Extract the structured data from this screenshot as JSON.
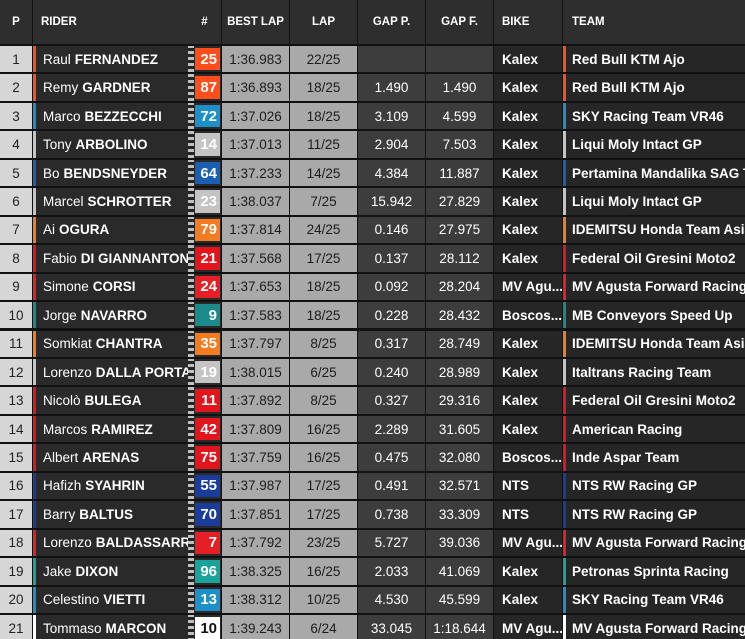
{
  "header": [
    "P",
    "RIDER",
    "#",
    "BEST LAP",
    "LAP",
    "GAP P.",
    "GAP F.",
    "BIKE",
    "TEAM"
  ],
  "rows": [
    {
      "p": 1,
      "first": "Raul",
      "last": "FERNANDEZ",
      "number": 25,
      "color": "#ff4e1b",
      "best_lap": "1:36.983",
      "lap": "22/25",
      "bike": "Kalex",
      "team": "Red Bull KTM Ajo"
    },
    {
      "p": 2,
      "first": "Remy",
      "last": "GARDNER",
      "number": 87,
      "color": "#ff4e1b",
      "best_lap": "1:36.893",
      "lap": "18/25",
      "gap_p": "1.490",
      "gap_f": "1.490",
      "bike": "Kalex",
      "team": "Red Bull KTM Ajo"
    },
    {
      "p": 3,
      "first": "Marco",
      "last": "BEZZECCHI",
      "number": 72,
      "color": "#1d8fc9",
      "best_lap": "1:37.026",
      "lap": "18/25",
      "gap_p": "3.109",
      "gap_f": "4.599",
      "bike": "Kalex",
      "team": "SKY Racing Team VR46"
    },
    {
      "p": 4,
      "first": "Tony",
      "last": "ARBOLINO",
      "number": 14,
      "color": "#c4c4c4",
      "best_lap": "1:37.013",
      "lap": "11/25",
      "gap_p": "2.904",
      "gap_f": "7.503",
      "bike": "Kalex",
      "team": "Liqui Moly Intact GP"
    },
    {
      "p": 5,
      "first": "Bo",
      "last": "BENDSNEYDER",
      "number": 64,
      "color": "#1b5fb5",
      "best_lap": "1:37.233",
      "lap": "14/25",
      "gap_p": "4.384",
      "gap_f": "11.887",
      "bike": "Kalex",
      "team": "Pertamina Mandalika SAG T..."
    },
    {
      "p": 6,
      "first": "Marcel",
      "last": "SCHROTTER",
      "number": 23,
      "color": "#c4c4c4",
      "best_lap": "1:38.037",
      "lap": "7/25",
      "gap_p": "15.942",
      "gap_f": "27.829",
      "bike": "Kalex",
      "team": "Liqui Moly Intact GP"
    },
    {
      "p": 7,
      "first": "Ai",
      "last": "OGURA",
      "number": 79,
      "color": "#f47b20",
      "best_lap": "1:37.814",
      "lap": "24/25",
      "gap_p": "0.146",
      "gap_f": "27.975",
      "bike": "Kalex",
      "team": "IDEMITSU Honda Team Asia"
    },
    {
      "p": 8,
      "first": "Fabio",
      "last": "DI GIANNANTON...",
      "number": 21,
      "color": "#e3141b",
      "best_lap": "1:37.568",
      "lap": "17/25",
      "gap_p": "0.137",
      "gap_f": "28.112",
      "bike": "Kalex",
      "team": "Federal Oil Gresini Moto2"
    },
    {
      "p": 9,
      "first": "Simone",
      "last": "CORSI",
      "number": 24,
      "color": "#e61e26",
      "best_lap": "1:37.653",
      "lap": "18/25",
      "gap_p": "0.092",
      "gap_f": "28.204",
      "bike": "MV Agu...",
      "team": "MV Agusta Forward Racing"
    },
    {
      "p": 10,
      "first": "Jorge",
      "last": "NAVARRO",
      "number": 9,
      "color": "#1a8a8a",
      "best_lap": "1:37.583",
      "lap": "18/25",
      "gap_p": "0.228",
      "gap_f": "28.432",
      "bike": "Boscos...",
      "team": "MB Conveyors Speed Up"
    },
    {
      "p": 11,
      "first": "Somkiat",
      "last": "CHANTRA",
      "number": 35,
      "color": "#f47b20",
      "best_lap": "1:37.797",
      "lap": "8/25",
      "gap_p": "0.317",
      "gap_f": "28.749",
      "bike": "Kalex",
      "team": "IDEMITSU Honda Team Asia"
    },
    {
      "p": 12,
      "first": "Lorenzo",
      "last": "DALLA PORTA",
      "number": 19,
      "color": "#c4c4c4",
      "best_lap": "1:38.015",
      "lap": "6/25",
      "gap_p": "0.240",
      "gap_f": "28.989",
      "bike": "Kalex",
      "team": "Italtrans Racing Team"
    },
    {
      "p": 13,
      "first": "Nicolò",
      "last": "BULEGA",
      "number": 11,
      "color": "#e3141b",
      "best_lap": "1:37.892",
      "lap": "8/25",
      "gap_p": "0.327",
      "gap_f": "29.316",
      "bike": "Kalex",
      "team": "Federal Oil Gresini Moto2"
    },
    {
      "p": 14,
      "first": "Marcos",
      "last": "RAMIREZ",
      "number": 42,
      "color": "#e3141b",
      "best_lap": "1:37.809",
      "lap": "16/25",
      "gap_p": "2.289",
      "gap_f": "31.605",
      "bike": "Kalex",
      "team": "American Racing"
    },
    {
      "p": 15,
      "first": "Albert",
      "last": "ARENAS",
      "number": 75,
      "color": "#e3141b",
      "best_lap": "1:37.759",
      "lap": "16/25",
      "gap_p": "0.475",
      "gap_f": "32.080",
      "bike": "Boscos...",
      "team": "Inde Aspar Team"
    },
    {
      "p": 16,
      "first": "Hafizh",
      "last": "SYAHRIN",
      "number": 55,
      "color": "#1a3d9c",
      "best_lap": "1:37.987",
      "lap": "17/25",
      "gap_p": "0.491",
      "gap_f": "32.571",
      "bike": "NTS",
      "team": "NTS RW Racing GP"
    },
    {
      "p": 17,
      "first": "Barry",
      "last": "BALTUS",
      "number": 70,
      "color": "#1a3d9c",
      "best_lap": "1:37.851",
      "lap": "17/25",
      "gap_p": "0.738",
      "gap_f": "33.309",
      "bike": "NTS",
      "team": "NTS RW Racing GP"
    },
    {
      "p": 18,
      "first": "Lorenzo",
      "last": "BALDASSARRI",
      "number": 7,
      "color": "#e61e26",
      "best_lap": "1:37.792",
      "lap": "23/25",
      "gap_p": "5.727",
      "gap_f": "39.036",
      "bike": "MV Agu...",
      "team": "MV Agusta Forward Racing"
    },
    {
      "p": 19,
      "first": "Jake",
      "last": "DIXON",
      "number": 96,
      "color": "#19a39a",
      "best_lap": "1:38.325",
      "lap": "16/25",
      "gap_p": "2.033",
      "gap_f": "41.069",
      "bike": "Kalex",
      "team": "Petronas Sprinta Racing"
    },
    {
      "p": 20,
      "first": "Celestino",
      "last": "VIETTI",
      "number": 13,
      "color": "#1d8fc9",
      "best_lap": "1:38.312",
      "lap": "10/25",
      "gap_p": "4.530",
      "gap_f": "45.599",
      "bike": "Kalex",
      "team": "SKY Racing Team VR46"
    },
    {
      "p": 21,
      "first": "Tommaso",
      "last": "MARCON",
      "number": 10,
      "color": "#ffffff",
      "best_lap": "1:39.243",
      "lap": "6/24",
      "gap_p": "33.045",
      "gap_f": "1:18.644",
      "bike": "MV Agu...",
      "team": "MV Agusta Forward Racing"
    }
  ]
}
